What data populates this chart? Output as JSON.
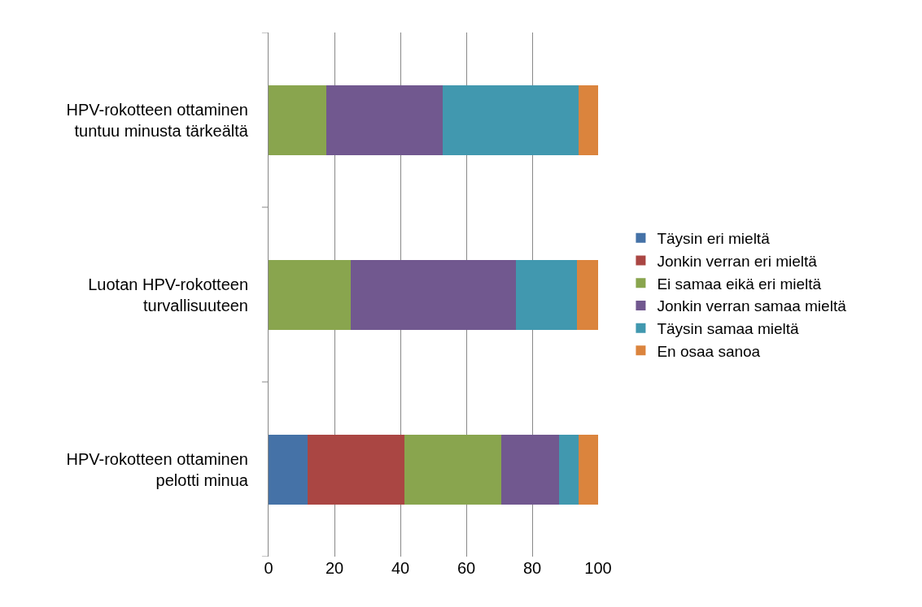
{
  "chart_data": {
    "type": "bar",
    "orientation": "horizontal",
    "stacked": true,
    "categories": [
      "HPV-rokotteen ottaminen tuntuu minusta tärkeältä",
      "Luotan HPV-rokotteen turvallisuuteen",
      "HPV-rokotteen ottaminen pelotti minua"
    ],
    "series": [
      {
        "name": "Täysin eri mieltä",
        "color": "#4572a7",
        "values": [
          0,
          0,
          11.8
        ]
      },
      {
        "name": "Jonkin verran eri mieltä",
        "color": "#aa4643",
        "values": [
          0,
          0,
          29.4
        ]
      },
      {
        "name": "Ei samaa eikä eri mieltä",
        "color": "#89a54e",
        "values": [
          17.6,
          25,
          29.4
        ]
      },
      {
        "name": "Jonkin verran samaa mieltä",
        "color": "#71588f",
        "values": [
          35.3,
          50,
          17.6
        ]
      },
      {
        "name": "Täysin samaa mieltä",
        "color": "#4198af",
        "values": [
          41.2,
          18.7,
          5.9
        ]
      },
      {
        "name": "En osaa sanoa",
        "color": "#db843d",
        "values": [
          5.9,
          6.3,
          5.9
        ]
      }
    ],
    "xlim": [
      0,
      100
    ],
    "xticks": [
      0,
      20,
      40,
      60,
      80,
      100
    ],
    "grid": "x",
    "legend": "right"
  }
}
